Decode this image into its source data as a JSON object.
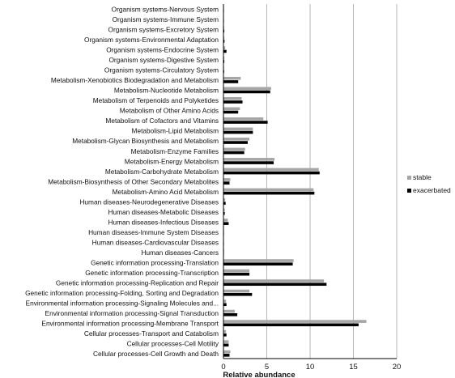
{
  "chart_data": {
    "type": "bar",
    "orientation": "horizontal",
    "xlabel": "Relative abundance",
    "xlim": [
      0,
      20
    ],
    "xticks": [
      0,
      5,
      10,
      15,
      20
    ],
    "grid": true,
    "legend_position": "right",
    "series": [
      {
        "name": "stable",
        "color": "#a6a6a6"
      },
      {
        "name": "exacerbated",
        "color": "#000000"
      }
    ],
    "categories": [
      "Organism systems-Nervous System",
      "Organism systems-Immune System",
      "Organism systems-Excretory System",
      "Organism systems-Environmental Adaptation",
      "Organism systems-Endocrine System",
      "Organism systems-Digestive System",
      "Organism systems-Circulatory System",
      "Metabolism-Xenobiotics Biodegradation and Metabolism",
      "Metabolism-Nucleotide Metabolism",
      "Metabolism of Terpenoids and Polyketides",
      "Metabolism of Other Amino Acids",
      "Metabolism of Cofactors and Vitamins",
      "Metabolism-Lipid Metabolism",
      "Metabolism-Glycan Biosynthesis and Metabolism",
      "Metabolism-Enzyme Families",
      "Metabolism-Energy Metabolism",
      "Metabolism-Carbohydrate Metabolism",
      "Metabolism-Biosynthesis of Other Secondary Metabolites",
      "Metabolism-Amino Acid Metabolism",
      "Human diseases-Neurodegenerative Diseases",
      "Human diseases-Metabolic Diseases",
      "Human diseases-Infectious Diseases",
      "Human diseases-Immune System Diseases",
      "Human diseases-Cardiovascular Diseases",
      "Human diseases-Cancers",
      "Genetic information processing-Translation",
      "Genetic information processing-Transcription",
      "Genetic information processing-Replication and Repair",
      "Genetic information processing-Folding, Sorting and Degradation",
      "Environmental information processing-Signaling Molecules and...",
      "Environmental information processing-Signal Transduction",
      "Environmental information processing-Membrane Transport",
      "Cellular processes-Transport and Catabolism",
      "Cellular processes-Cell Motility",
      "Cellular processes-Cell Growth and Death"
    ],
    "values": {
      "stable": [
        0.05,
        0.05,
        0.08,
        0.1,
        0.2,
        0.1,
        0.06,
        2.0,
        5.5,
        2.1,
        1.9,
        4.6,
        3.4,
        3.0,
        2.5,
        5.9,
        11.0,
        0.8,
        10.4,
        0.2,
        0.15,
        0.5,
        0.05,
        0.05,
        0.08,
        8.1,
        3.0,
        11.6,
        3.0,
        0.3,
        1.3,
        16.5,
        0.3,
        0.6,
        0.8
      ],
      "exacerbated": [
        0.05,
        0.05,
        0.1,
        0.12,
        0.35,
        0.1,
        0.08,
        1.7,
        5.4,
        2.2,
        1.7,
        5.1,
        3.4,
        2.8,
        2.4,
        5.8,
        11.1,
        0.7,
        10.5,
        0.25,
        0.15,
        0.6,
        0.05,
        0.05,
        0.05,
        8.0,
        3.0,
        11.9,
        3.3,
        0.35,
        1.6,
        15.6,
        0.35,
        0.6,
        0.7
      ]
    }
  }
}
